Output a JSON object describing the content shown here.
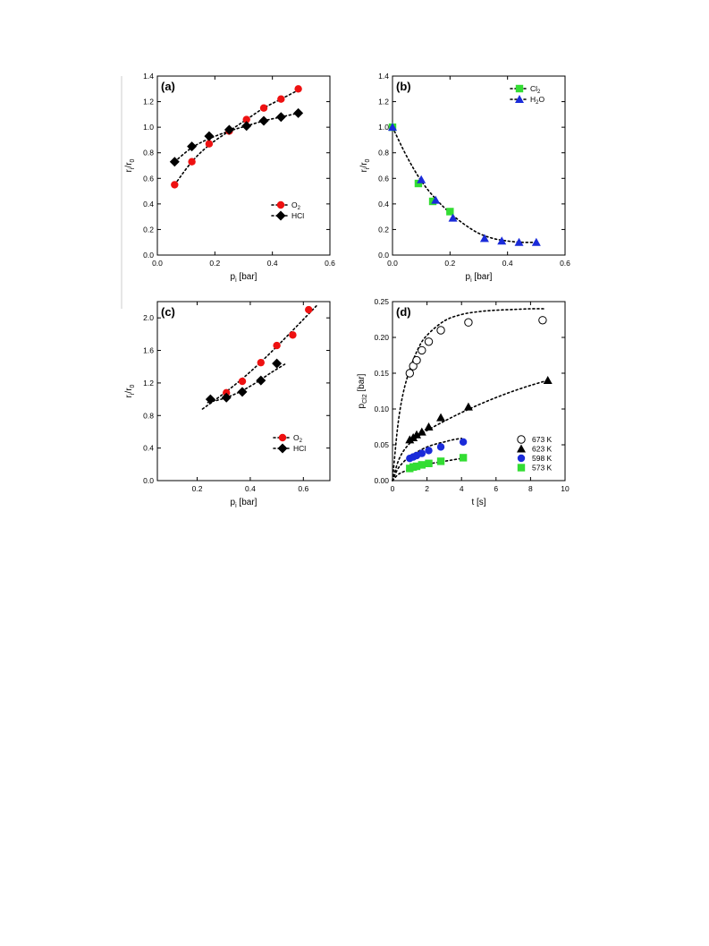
{
  "figure": {
    "panels": [
      {
        "label": "(a)",
        "xlabel_main": "p",
        "xlabel_sub": "i",
        "xlabel_rest": " [bar]",
        "ylabel_main": "r",
        "ylabel_sub": "i",
        "ylabel_rest": "/r",
        "ylabel_sub2": "0"
      },
      {
        "label": "(b)",
        "xlabel_main": "p",
        "xlabel_sub": "i",
        "xlabel_rest": " [bar]",
        "ylabel_main": "r",
        "ylabel_sub": "i",
        "ylabel_rest": "/r",
        "ylabel_sub2": "0"
      },
      {
        "label": "(c)",
        "xlabel_main": "p",
        "xlabel_sub": "i",
        "xlabel_rest": " [bar]",
        "ylabel_main": "r",
        "ylabel_sub": "i",
        "ylabel_rest": "/r",
        "ylabel_sub2": "0"
      },
      {
        "label": "(d)",
        "xlabel_main": "t [s]",
        "xlabel_sub": "",
        "xlabel_rest": "",
        "ylabel_main": "p",
        "ylabel_sub": "Cl2",
        "ylabel_rest": " [bar]",
        "ylabel_sub2": ""
      }
    ]
  },
  "chart_data": [
    {
      "type": "scatter",
      "panel": "(a)",
      "xlim": [
        0.0,
        0.6
      ],
      "ylim": [
        0.0,
        1.4
      ],
      "xticks": [
        "0.0",
        "0.2",
        "0.4",
        "0.6"
      ],
      "yticks": [
        "0.0",
        "0.2",
        "0.4",
        "0.6",
        "0.8",
        "1.0",
        "1.2",
        "1.4"
      ],
      "legend_position": "bottom-right",
      "series": [
        {
          "name": "O",
          "name_sub": "2",
          "marker": "circle",
          "color": "#ee1111",
          "x": [
            0.06,
            0.12,
            0.18,
            0.25,
            0.31,
            0.37,
            0.43,
            0.49
          ],
          "y": [
            0.55,
            0.73,
            0.87,
            0.97,
            1.06,
            1.15,
            1.22,
            1.3
          ],
          "fit": {
            "x": [
              0.06,
              0.12,
              0.18,
              0.25,
              0.31,
              0.37,
              0.43,
              0.49
            ],
            "y": [
              0.55,
              0.73,
              0.86,
              0.97,
              1.06,
              1.15,
              1.22,
              1.29
            ]
          }
        },
        {
          "name": "HCl",
          "name_sub": "",
          "marker": "diamond",
          "color": "#000000",
          "x": [
            0.06,
            0.12,
            0.18,
            0.25,
            0.31,
            0.37,
            0.43,
            0.49
          ],
          "y": [
            0.73,
            0.85,
            0.93,
            0.98,
            1.01,
            1.05,
            1.08,
            1.11
          ],
          "fit": {
            "x": [
              0.06,
              0.12,
              0.18,
              0.25,
              0.31,
              0.37,
              0.43,
              0.49
            ],
            "y": [
              0.73,
              0.84,
              0.91,
              0.97,
              1.01,
              1.05,
              1.08,
              1.11
            ]
          }
        }
      ]
    },
    {
      "type": "scatter",
      "panel": "(b)",
      "xlim": [
        0.0,
        0.6
      ],
      "ylim": [
        0.0,
        1.4
      ],
      "xticks": [
        "0.0",
        "0.2",
        "0.4",
        "0.6"
      ],
      "yticks": [
        "0.0",
        "0.2",
        "0.4",
        "0.6",
        "0.8",
        "1.0",
        "1.2",
        "1.4"
      ],
      "legend_position": "top-right",
      "series": [
        {
          "name": "Cl",
          "name_sub": "2",
          "marker": "square",
          "color": "#33dd33",
          "x": [
            0.0,
            0.09,
            0.14,
            0.2
          ],
          "y": [
            1.0,
            0.56,
            0.42,
            0.34
          ]
        },
        {
          "name": "H",
          "name_sub": "2",
          "name_rest": "O",
          "marker": "triangle",
          "color": "#1a2bd9",
          "x": [
            0.0,
            0.1,
            0.15,
            0.21,
            0.32,
            0.38,
            0.44,
            0.5
          ],
          "y": [
            1.0,
            0.59,
            0.43,
            0.29,
            0.13,
            0.11,
            0.1,
            0.1
          ]
        }
      ],
      "fit": {
        "x": [
          0.0,
          0.05,
          0.1,
          0.15,
          0.2,
          0.25,
          0.3,
          0.35,
          0.4,
          0.45,
          0.5
        ],
        "y": [
          1.0,
          0.77,
          0.58,
          0.44,
          0.33,
          0.24,
          0.17,
          0.13,
          0.11,
          0.1,
          0.1
        ]
      }
    },
    {
      "type": "scatter",
      "panel": "(c)",
      "xlim": [
        0.05,
        0.7
      ],
      "ylim": [
        0.0,
        2.2
      ],
      "xticks": [
        "0.2",
        "0.4",
        "0.6"
      ],
      "xtick_values": [
        0.2,
        0.4,
        0.6
      ],
      "yticks": [
        "0.0",
        "0.4",
        "0.8",
        "1.2",
        "1.6",
        "2.0"
      ],
      "legend_position": "bottom-right",
      "series": [
        {
          "name": "O",
          "name_sub": "2",
          "marker": "circle",
          "color": "#ee1111",
          "x": [
            0.31,
            0.37,
            0.44,
            0.5,
            0.56,
            0.62
          ],
          "y": [
            1.08,
            1.22,
            1.45,
            1.66,
            1.79,
            2.1
          ],
          "fit": {
            "x": [
              0.22,
              0.3,
              0.38,
              0.46,
              0.54,
              0.65
            ],
            "y": [
              0.88,
              1.07,
              1.28,
              1.52,
              1.78,
              2.15
            ]
          }
        },
        {
          "name": "HCl",
          "name_sub": "",
          "marker": "diamond",
          "color": "#000000",
          "x": [
            0.25,
            0.31,
            0.37,
            0.44,
            0.5
          ],
          "y": [
            1.0,
            1.02,
            1.09,
            1.23,
            1.44
          ],
          "fit": {
            "x": [
              0.24,
              0.3,
              0.36,
              0.42,
              0.48,
              0.53
            ],
            "y": [
              0.96,
              1.01,
              1.09,
              1.2,
              1.33,
              1.43
            ]
          }
        }
      ]
    },
    {
      "type": "scatter",
      "panel": "(d)",
      "xlim": [
        0,
        10
      ],
      "ylim": [
        0.0,
        0.25
      ],
      "xticks": [
        "0",
        "2",
        "4",
        "6",
        "8",
        "10"
      ],
      "yticks": [
        "0.00",
        "0.05",
        "0.10",
        "0.15",
        "0.20",
        "0.25"
      ],
      "legend_position": "bottom-right",
      "series": [
        {
          "name": "673 K",
          "marker": "circle-open",
          "color": "#000000",
          "x": [
            1.0,
            1.2,
            1.4,
            1.7,
            2.1,
            2.8,
            4.4,
            8.7
          ],
          "y": [
            0.15,
            0.16,
            0.168,
            0.182,
            0.194,
            0.21,
            0.221,
            0.224
          ],
          "fit": {
            "x": [
              0.0,
              0.3,
              0.6,
              1.0,
              1.5,
              2.0,
              3.0,
              4.0,
              5.0,
              6.0,
              7.0,
              8.0,
              8.8
            ],
            "y": [
              0.0,
              0.075,
              0.12,
              0.155,
              0.185,
              0.203,
              0.223,
              0.232,
              0.236,
              0.238,
              0.239,
              0.24,
              0.24
            ]
          }
        },
        {
          "name": "623 K",
          "marker": "triangle",
          "color": "#000000",
          "x": [
            1.0,
            1.2,
            1.4,
            1.7,
            2.1,
            2.8,
            4.4,
            9.0
          ],
          "y": [
            0.057,
            0.06,
            0.064,
            0.068,
            0.075,
            0.088,
            0.103,
            0.14
          ],
          "fit": {
            "x": [
              0.0,
              0.3,
              0.6,
              1.0,
              1.5,
              2.0,
              3.0,
              4.0,
              5.0,
              6.0,
              7.0,
              8.0,
              9.0
            ],
            "y": [
              0.0,
              0.025,
              0.04,
              0.052,
              0.062,
              0.07,
              0.083,
              0.095,
              0.106,
              0.116,
              0.125,
              0.133,
              0.14
            ]
          }
        },
        {
          "name": "598 K",
          "marker": "circle",
          "color": "#1a2bd9",
          "x": [
            1.0,
            1.2,
            1.4,
            1.7,
            2.1,
            2.8,
            4.1
          ],
          "y": [
            0.031,
            0.033,
            0.035,
            0.038,
            0.042,
            0.047,
            0.054
          ],
          "fit": {
            "x": [
              0.0,
              0.3,
              0.6,
              1.0,
              1.5,
              2.0,
              2.5,
              3.0,
              3.5,
              4.0
            ],
            "y": [
              0.0,
              0.016,
              0.025,
              0.034,
              0.041,
              0.047,
              0.051,
              0.054,
              0.057,
              0.059
            ]
          }
        },
        {
          "name": "573 K",
          "marker": "square",
          "color": "#33dd33",
          "x": [
            1.0,
            1.2,
            1.4,
            1.7,
            2.1,
            2.8,
            4.1
          ],
          "y": [
            0.017,
            0.019,
            0.02,
            0.022,
            0.024,
            0.027,
            0.032
          ],
          "fit": {
            "x": [
              0.0,
              0.3,
              0.6,
              1.0,
              1.5,
              2.0,
              2.5,
              3.0,
              3.5,
              4.0
            ],
            "y": [
              0.0,
              0.008,
              0.012,
              0.016,
              0.02,
              0.023,
              0.025,
              0.027,
              0.029,
              0.031
            ]
          }
        }
      ]
    }
  ]
}
